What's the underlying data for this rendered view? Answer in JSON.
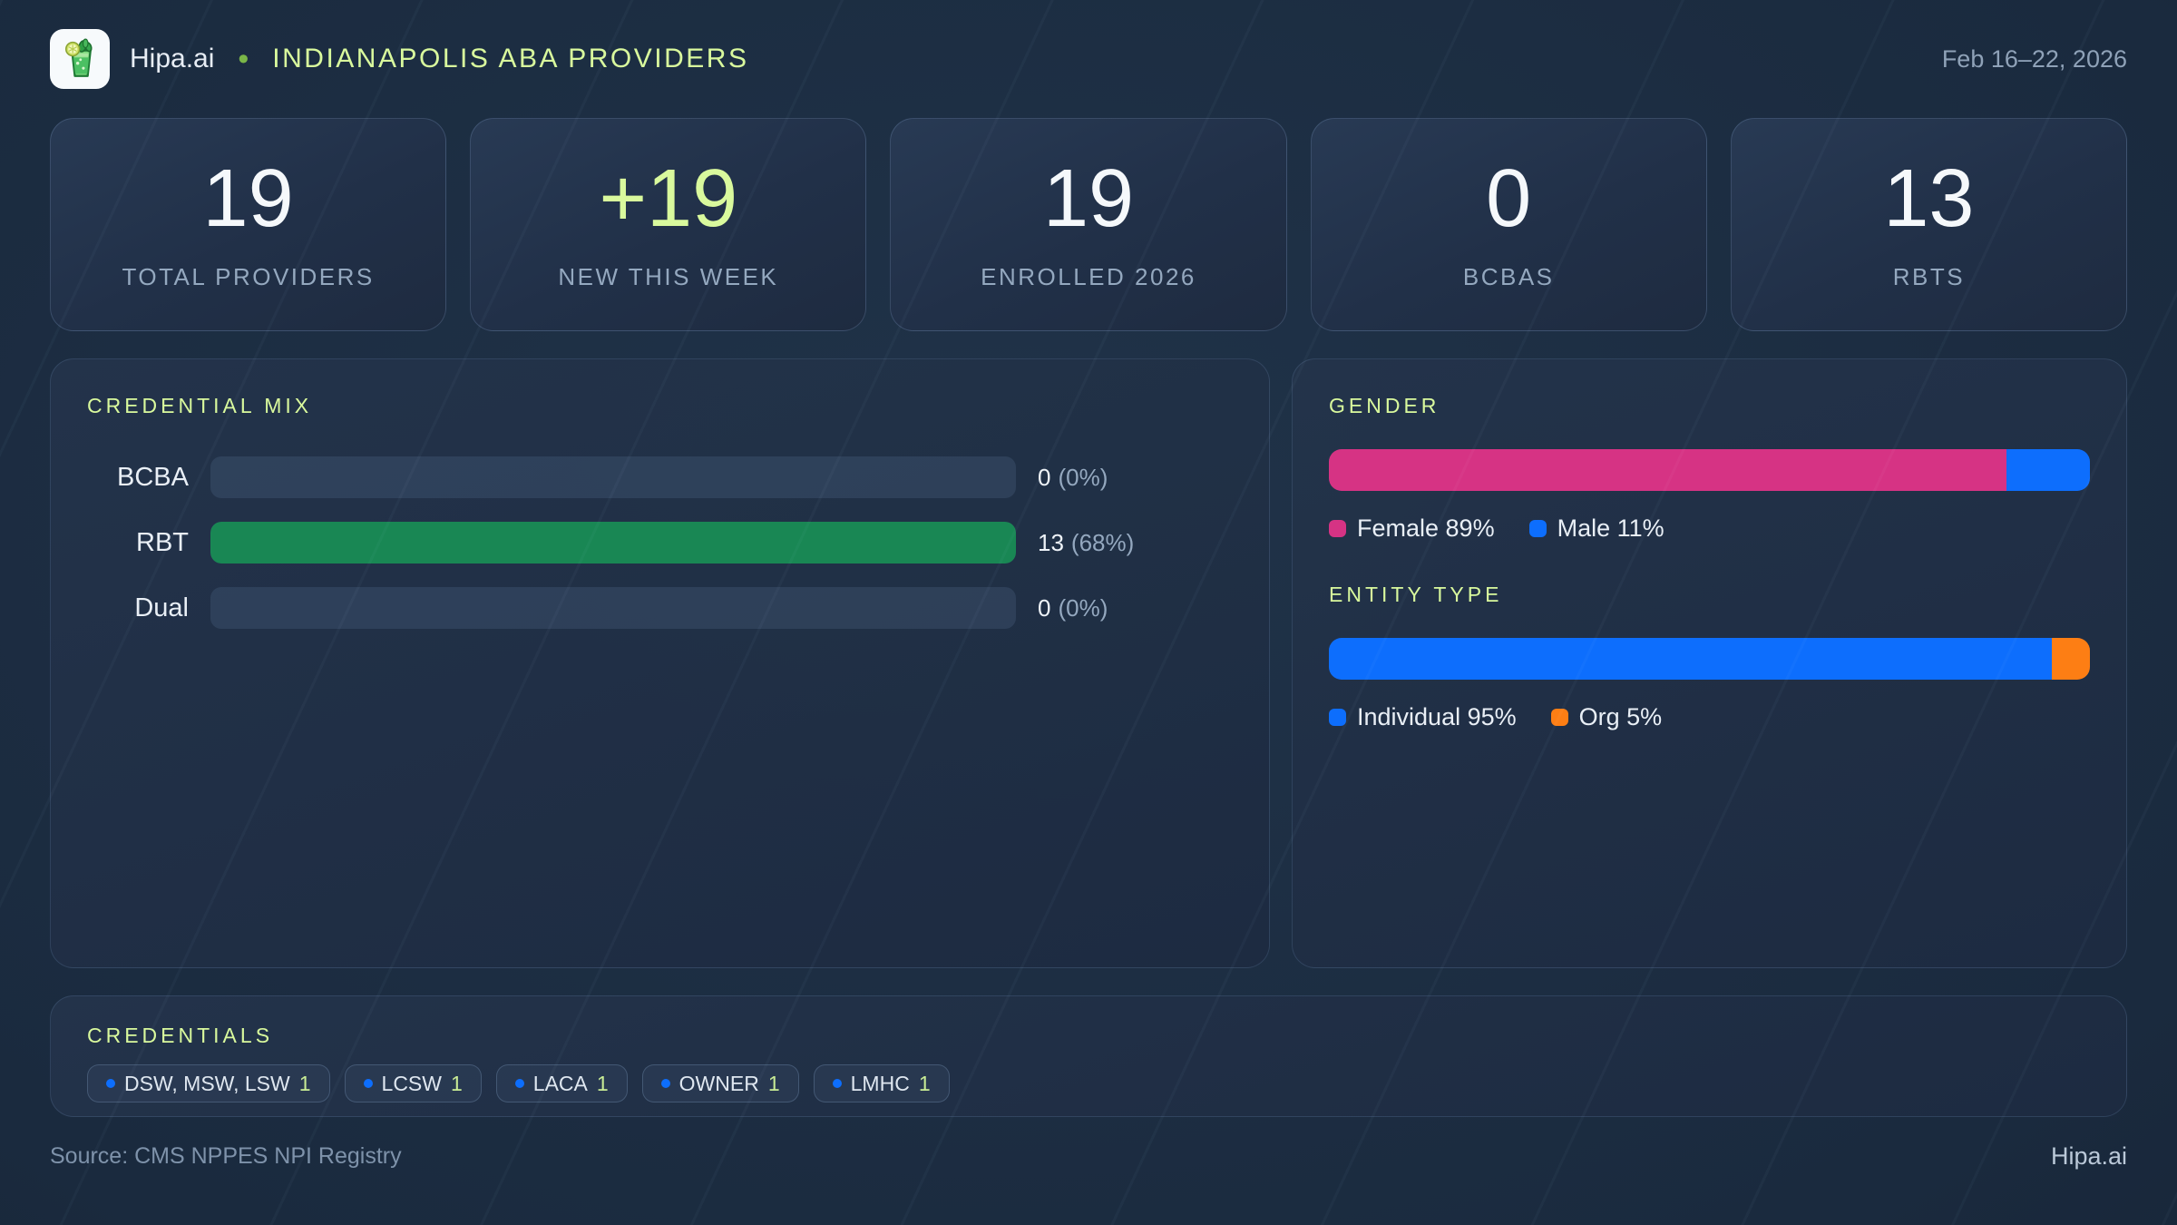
{
  "colors": {
    "accent_lime": "#d9f99d",
    "bar_green": "#198754",
    "female_pink": "#d63384",
    "male_blue": "#0d6efd",
    "individual_blue": "#0d6efd",
    "org_orange": "#fd7e14",
    "background_navy": "#16253a"
  },
  "header": {
    "brand": "Hipa.ai",
    "separator": "•",
    "title": "INDIANAPOLIS ABA PROVIDERS",
    "date_range": "Feb 16–22, 2026",
    "logo_icon": "mojito-glass-icon"
  },
  "stats": [
    {
      "value": "19",
      "label": "TOTAL PROVIDERS",
      "accent": false
    },
    {
      "value": "+19",
      "label": "NEW THIS WEEK",
      "accent": true
    },
    {
      "value": "19",
      "label": "ENROLLED 2026",
      "accent": false
    },
    {
      "value": "0",
      "label": "BCBAS",
      "accent": false
    },
    {
      "value": "13",
      "label": "RBTS",
      "accent": false
    }
  ],
  "panels": {
    "credential_mix": {
      "title": "CREDENTIAL MIX",
      "rows": [
        {
          "label": "BCBA",
          "value": 0,
          "value_text": "0",
          "pct_text": "(0%)",
          "color": "#198754"
        },
        {
          "label": "RBT",
          "value": 13,
          "value_text": "13",
          "pct_text": "(68%)",
          "color": "#198754"
        },
        {
          "label": "Dual",
          "value": 0,
          "value_text": "0",
          "pct_text": "(0%)",
          "color": "#198754"
        }
      ]
    },
    "gender": {
      "title": "GENDER",
      "segments": [
        {
          "label": "Female 89%",
          "pct": 89,
          "color": "#d63384"
        },
        {
          "label": "Male 11%",
          "pct": 11,
          "color": "#0d6efd"
        }
      ]
    },
    "entity_type": {
      "title": "ENTITY TYPE",
      "segments": [
        {
          "label": "Individual 95%",
          "pct": 95,
          "color": "#0d6efd"
        },
        {
          "label": "Org 5%",
          "pct": 5,
          "color": "#fd7e14"
        }
      ]
    }
  },
  "credentials": {
    "title": "CREDENTIALS",
    "chips": [
      {
        "label": "DSW, MSW, LSW",
        "count": "1"
      },
      {
        "label": "LCSW",
        "count": "1"
      },
      {
        "label": "LACA",
        "count": "1"
      },
      {
        "label": "OWNER",
        "count": "1"
      },
      {
        "label": "LMHC",
        "count": "1"
      }
    ]
  },
  "footer": {
    "source": "Source: CMS NPPES NPI Registry",
    "brand": "Hipa.ai"
  },
  "chart_data": [
    {
      "type": "bar",
      "orientation": "horizontal",
      "title": "CREDENTIAL MIX",
      "categories": [
        "BCBA",
        "RBT",
        "Dual"
      ],
      "values": [
        0,
        13,
        0
      ],
      "value_labels": [
        "0 (0%)",
        "13 (68%)",
        "0 (0%)"
      ],
      "bar_color": "#198754",
      "note": "bars scaled to max value; RBT (13) renders full width"
    },
    {
      "type": "bar",
      "subtype": "stacked-100pct",
      "title": "GENDER",
      "categories": [
        "Female",
        "Male"
      ],
      "values": [
        89,
        11
      ],
      "unit": "%",
      "colors": [
        "#d63384",
        "#0d6efd"
      ],
      "legend_position": "bottom"
    },
    {
      "type": "bar",
      "subtype": "stacked-100pct",
      "title": "ENTITY TYPE",
      "categories": [
        "Individual",
        "Org"
      ],
      "values": [
        95,
        5
      ],
      "unit": "%",
      "colors": [
        "#0d6efd",
        "#fd7e14"
      ],
      "legend_position": "bottom"
    }
  ]
}
